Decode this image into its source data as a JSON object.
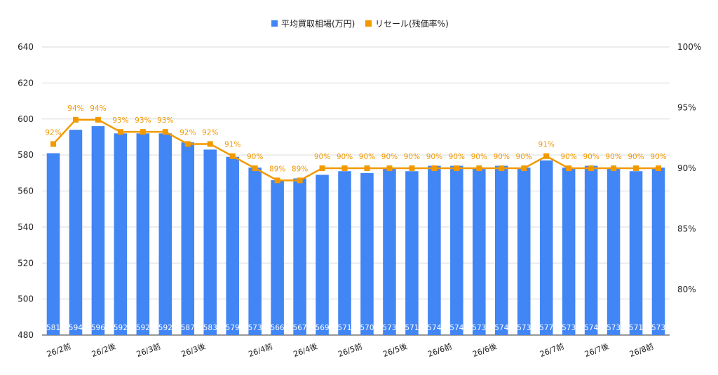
{
  "chart_data": {
    "type": "bar",
    "categories": [
      "26/2前",
      "26/2前",
      "26/2前",
      "26/2後",
      "26/2後",
      "26/3前",
      "26/3前",
      "26/3後",
      "26/3後",
      "26/4前",
      "26/4前",
      "26/4前",
      "26/4後",
      "26/4後",
      "26/5前",
      "26/5前",
      "26/5後",
      "26/5後",
      "26/6前",
      "26/6前",
      "26/6後",
      "26/6後",
      "26/7前",
      "26/7前",
      "26/7後",
      "26/7後",
      "26/8前",
      "26/8前"
    ],
    "x_tick_labels": [
      "26/2前",
      "26/2後",
      "26/3前",
      "26/3後",
      "26/4前",
      "26/4後",
      "26/5前",
      "26/5後",
      "26/6前",
      "26/6後",
      "26/7前",
      "26/7後",
      "26/8前"
    ],
    "series": [
      {
        "name": "平均買取相場(万円)",
        "type": "bar",
        "axis": "left",
        "color": "#4285f4",
        "values": [
          581,
          594,
          596,
          592,
          592,
          592,
          587,
          583,
          579,
          573,
          566,
          567,
          569,
          571,
          570,
          573,
          571,
          574,
          574,
          573,
          574,
          573,
          577,
          573,
          574,
          573,
          571,
          573
        ]
      },
      {
        "name": "リセール(残価率%)",
        "type": "line",
        "axis": "right",
        "color": "#f29900",
        "values": [
          92,
          94,
          94,
          93,
          93,
          93,
          92,
          92,
          91,
          90,
          89,
          89,
          90,
          90,
          90,
          90,
          90,
          90,
          90,
          90,
          90,
          90,
          91,
          90,
          90,
          90,
          90,
          90
        ]
      }
    ],
    "y_left": {
      "ylim": [
        480,
        640
      ],
      "ticks": [
        "480",
        "500",
        "520",
        "540",
        "560",
        "580",
        "600",
        "620",
        "640"
      ]
    },
    "y_right": {
      "ylim": [
        76.25,
        100
      ],
      "ticks": [
        "80%",
        "85%",
        "90%",
        "95%",
        "100%"
      ],
      "tick_values": [
        80,
        85,
        90,
        95,
        100
      ]
    },
    "legend_position": "top-center",
    "grid": true
  }
}
